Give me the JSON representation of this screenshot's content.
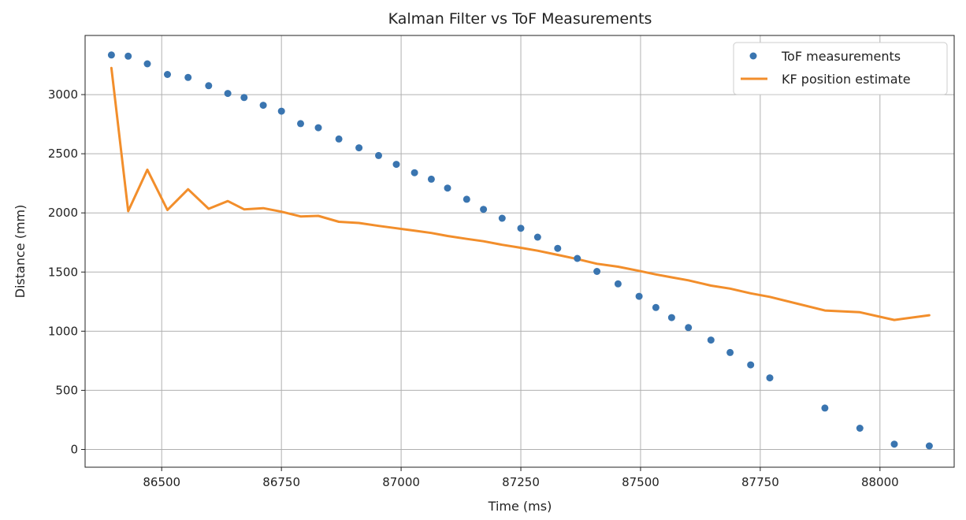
{
  "chart_data": {
    "type": "line",
    "title": "Kalman Filter vs ToF Measurements",
    "xlabel": "Time (ms)",
    "ylabel": "Distance (mm)",
    "xlim": [
      86340,
      88155
    ],
    "ylim": [
      -150,
      3500
    ],
    "xticks": [
      86500,
      86750,
      87000,
      87250,
      87500,
      87750,
      88000
    ],
    "yticks": [
      0,
      500,
      1000,
      1500,
      2000,
      2500,
      3000
    ],
    "grid": true,
    "legend_position": "top-right",
    "series": [
      {
        "name": "ToF measurements",
        "style": "markers",
        "color": "#3a75b0",
        "x": [
          86395,
          86430,
          86470,
          86512,
          86555,
          86598,
          86638,
          86672,
          86712,
          86750,
          86790,
          86827,
          86870,
          86912,
          86953,
          86990,
          87028,
          87063,
          87097,
          87137,
          87172,
          87211,
          87250,
          87285,
          87327,
          87368,
          87409,
          87453,
          87497,
          87532,
          87565,
          87600,
          87647,
          87687,
          87730,
          87770,
          87885,
          87958,
          88030,
          88103
        ],
        "y": [
          3335,
          3325,
          3260,
          3170,
          3145,
          3075,
          3010,
          2975,
          2910,
          2860,
          2755,
          2720,
          2625,
          2550,
          2485,
          2410,
          2340,
          2285,
          2210,
          2115,
          2030,
          1955,
          1870,
          1795,
          1700,
          1615,
          1505,
          1400,
          1295,
          1200,
          1115,
          1030,
          925,
          820,
          715,
          605,
          350,
          180,
          45,
          30
        ]
      },
      {
        "name": "KF position estimate",
        "style": "line",
        "color": "#f28e2b",
        "x": [
          86395,
          86430,
          86470,
          86512,
          86555,
          86598,
          86638,
          86672,
          86712,
          86750,
          86790,
          86827,
          86870,
          86912,
          86953,
          86990,
          87028,
          87063,
          87097,
          87137,
          87172,
          87211,
          87250,
          87285,
          87327,
          87368,
          87409,
          87453,
          87497,
          87532,
          87565,
          87600,
          87647,
          87687,
          87730,
          87770,
          87885,
          87958,
          88030,
          88103
        ],
        "y": [
          3225,
          2015,
          2365,
          2025,
          2200,
          2035,
          2100,
          2030,
          2040,
          2010,
          1970,
          1975,
          1925,
          1915,
          1890,
          1870,
          1850,
          1830,
          1805,
          1780,
          1760,
          1730,
          1705,
          1680,
          1645,
          1610,
          1570,
          1545,
          1510,
          1480,
          1455,
          1430,
          1385,
          1360,
          1320,
          1290,
          1175,
          1160,
          1095,
          1135
        ]
      }
    ]
  }
}
